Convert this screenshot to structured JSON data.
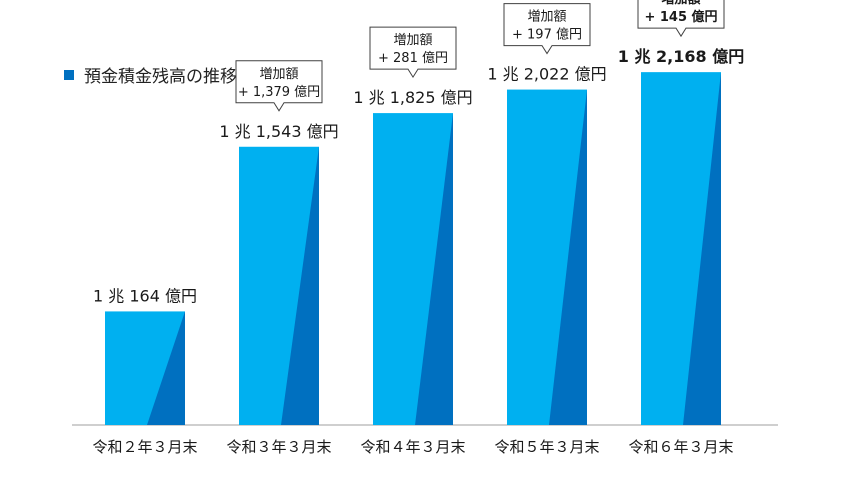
{
  "legend": {
    "label": "預金積金残高の推移",
    "color": "#0070c0"
  },
  "colors": {
    "bar_light": "#00b0f0",
    "bar_dark": "#0070c0",
    "axis": "#bfbfbf",
    "callout_border": "#404040"
  },
  "chart_data": {
    "type": "bar",
    "categories": [
      "令和２年３月末",
      "令和３年３月末",
      "令和４年３月末",
      "令和５年３月末",
      "令和６年３月末"
    ],
    "values": [
      10164,
      11543,
      11825,
      12022,
      12168
    ],
    "unit": "億円",
    "data_labels": [
      "1 兆 164 億円",
      "1 兆 1,543 億円",
      "1 兆 1,825 億円",
      "1 兆 2,022 億円",
      "1 兆 2,168 億円"
    ],
    "callouts": [
      null,
      {
        "title": "増加額",
        "value": "+ 1,379 億円"
      },
      {
        "title": "増加額",
        "value": "+ 281 億円"
      },
      {
        "title": "増加額",
        "value": "+ 197 億円"
      },
      {
        "title": "増加額",
        "value": "+ 145 億円"
      }
    ],
    "highlight_index": 4,
    "series": [
      {
        "values": [
          10164,
          11543,
          11825,
          12022,
          12168
        ]
      }
    ],
    "title": "預金積金残高の推移",
    "xlabel": "",
    "ylabel": "",
    "grid": false,
    "legend_position": "top-left"
  }
}
